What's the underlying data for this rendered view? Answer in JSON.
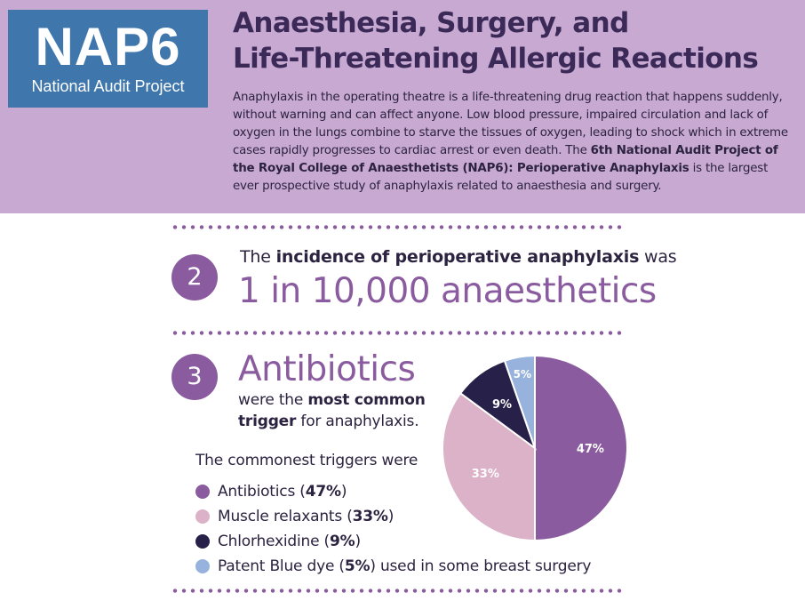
{
  "header": {
    "logo": {
      "acronym": "NAP6",
      "subtitle": "National Audit Project"
    },
    "title_line1": "Anaesthesia, Surgery, and",
    "title_line2": "Life-Threatening Allergic Reactions",
    "intro_plain": "Anaphylaxis in the operating theatre is a life-threatening drug reaction that happens suddenly, without warning and can affect anyone. Low blood pressure, impaired circulation and lack of oxygen in the lungs combine to starve the tissues of oxygen, leading to shock which in extreme cases rapidly progresses to cardiac arrest or even death. The ",
    "intro_bold": "6th National Audit Project of the Royal College of Anaesthetists (NAP6): Perioperative Anaphylaxis",
    "intro_end": " is the largest ever prospective study of anaphylaxis related to anaesthesia and surgery."
  },
  "section2": {
    "number": "2",
    "text_pre": "The ",
    "text_bold": "incidence of perioperative anaphylaxis",
    "text_post": " was",
    "headline": "1 in 10,000 anaesthetics"
  },
  "section3": {
    "number": "3",
    "headline": "Antibiotics",
    "sub_pre": "were the ",
    "sub_bold1": "most common",
    "sub_bold2": "trigger",
    "sub_post": " for anaphylaxis.",
    "list_title": "The commonest triggers were",
    "items": [
      {
        "name": "Antibiotics",
        "pre": "Antibiotics (",
        "pct": "47%",
        "post": ")",
        "color": "#8a5c9f"
      },
      {
        "name": "Muscle relaxants",
        "pre": "Muscle relaxants (",
        "pct": "33%",
        "post": ")",
        "color": "#dbb2c7"
      },
      {
        "name": "Chlorhexidine",
        "pre": "Chlorhexidine (",
        "pct": "9%",
        "post": ")",
        "color": "#272048"
      },
      {
        "name": "Patent Blue dye",
        "pre": "Patent Blue dye (",
        "pct": "5%",
        "post": ") used in some breast surgery",
        "color": "#97b2dc"
      }
    ]
  },
  "chart_data": {
    "type": "pie",
    "title": "",
    "categories": [
      "Antibiotics",
      "Muscle relaxants",
      "Chlorhexidine",
      "Patent Blue dye"
    ],
    "values": [
      47,
      33,
      9,
      5
    ],
    "labels": [
      "47%",
      "33%",
      "9%",
      "5%"
    ],
    "colors": [
      "#8a5c9f",
      "#dbb2c7",
      "#272048",
      "#97b2dc"
    ],
    "label_colors": [
      "#ffffff",
      "#ffffff",
      "#ffffff",
      "#ffffff"
    ],
    "start": "top",
    "direction": "clockwise"
  }
}
